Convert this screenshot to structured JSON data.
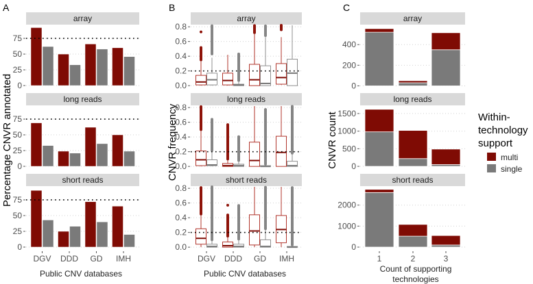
{
  "panel_labels": [
    "A",
    "B",
    "C"
  ],
  "colors": {
    "multi": "#7f0b04",
    "single": "#7a7a7a",
    "multi_box": "#b0332a",
    "single_box": "#8f8f8f",
    "strip": "#d9d9d9"
  },
  "legend": {
    "title_lines": [
      "Within-",
      "technology",
      "support"
    ],
    "items": [
      "multi",
      "single"
    ]
  },
  "chart_data": [
    {
      "type": "bar",
      "panel": "A",
      "facets": [
        "array",
        "long reads",
        "short reads"
      ],
      "categories": [
        "DGV",
        "DDD",
        "GD",
        "IMH"
      ],
      "xlabel": "Public CNV databases",
      "ylabel": "Percentage CNVR annotated",
      "yticks": [
        0,
        25,
        50,
        75
      ],
      "ylim": [
        -5.4,
        95.7
      ],
      "reference_line": 75,
      "grid": true,
      "series": [
        {
          "name": "multi",
          "values": [
            [
              92,
              50,
              66,
              60
            ],
            [
              69,
              24,
              62,
              50
            ],
            [
              90,
              25,
              72,
              65
            ]
          ]
        },
        {
          "name": "single",
          "values": [
            [
              62,
              33,
              58,
              46
            ],
            [
              33,
              21,
              36,
              24
            ],
            [
              43,
              33,
              40,
              20
            ]
          ]
        }
      ]
    },
    {
      "type": "box",
      "panel": "B",
      "facets": [
        "array",
        "long reads",
        "short reads"
      ],
      "categories": [
        "DGV",
        "DDD",
        "GD",
        "IMH"
      ],
      "xlabel": "Public CNV databases",
      "ylabel": "CNVR frequency",
      "yticks": [
        0,
        0.2,
        0.4,
        0.6,
        0.8
      ],
      "ytick_labels": [
        "0.0",
        "0.2",
        "0.4",
        "0.6",
        "0.8"
      ],
      "ylim": [
        -0.045,
        0.82
      ],
      "reference_line": 0.2,
      "grid": true,
      "stat_order": [
        "whisker_low",
        "q1",
        "median",
        "q3",
        "whisker_high"
      ],
      "series": [
        {
          "name": "multi",
          "stats": [
            [
              [
                0.0,
                0.01,
                0.05,
                0.14,
                0.33
              ],
              [
                0.0,
                0.01,
                0.07,
                0.17,
                0.42
              ],
              [
                0.0,
                0.0,
                0.08,
                0.29,
                0.7
              ],
              [
                0.01,
                0.02,
                0.11,
                0.3,
                0.66
              ]
            ],
            [
              [
                0.0,
                0.01,
                0.09,
                0.21,
                0.5
              ],
              [
                0.0,
                0.0,
                0.01,
                0.04,
                0.09
              ],
              [
                0.0,
                0.0,
                0.08,
                0.33,
                0.83
              ],
              [
                0.0,
                0.0,
                0.19,
                0.41,
                0.83
              ]
            ],
            [
              [
                0.0,
                0.04,
                0.12,
                0.25,
                0.45
              ],
              [
                0.0,
                0.0,
                0.02,
                0.07,
                0.15
              ],
              [
                0.0,
                0.03,
                0.22,
                0.44,
                0.83
              ],
              [
                0.0,
                0.06,
                0.24,
                0.43,
                0.83
              ]
            ]
          ],
          "outlier_ranges": [
            [
              [
                0.35,
                0.52,
                0.73
              ],
              [],
              [
                0.72,
                0.83
              ],
              [
                0.76,
                0.83
              ]
            ],
            [
              [
                0.5,
                0.83
              ],
              [
                0.1,
                0.57
              ],
              [
                0.83,
                0.83
              ],
              []
            ],
            [
              [
                0.45,
                0.83
              ],
              [
                0.15,
                0.44,
                0.57
              ],
              [],
              []
            ]
          ]
        },
        {
          "name": "single",
          "stats": [
            [
              [
                0.0,
                0.01,
                0.08,
                0.17,
                0.38
              ],
              [
                0.0,
                0.0,
                0.01,
                0.02,
                0.05
              ],
              [
                0.0,
                0.0,
                0.03,
                0.27,
                0.66
              ],
              [
                0.0,
                0.0,
                0.17,
                0.36,
                0.83
              ]
            ],
            [
              [
                0.0,
                0.01,
                0.02,
                0.09,
                0.2
              ],
              [
                0.0,
                0.0,
                0.01,
                0.03,
                0.07
              ],
              [
                0.0,
                0.0,
                0.0,
                0.01,
                0.02
              ],
              [
                0.0,
                0.0,
                0.01,
                0.07,
                0.17
              ]
            ],
            [
              [
                0.0,
                0.0,
                0.01,
                0.04,
                0.1
              ],
              [
                0.0,
                0.0,
                0.01,
                0.04,
                0.1
              ],
              [
                0.0,
                0.0,
                0.01,
                0.1,
                0.25
              ],
              [
                0.0,
                0.0,
                0.0,
                0.01,
                0.02
              ]
            ]
          ],
          "outlier_ranges": [
            [
              [
                0.43,
                0.83
              ],
              [
                0.07,
                0.44
              ],
              [
                0.68,
                0.83
              ],
              []
            ],
            [
              [
                0.22,
                0.64
              ],
              [
                0.08,
                0.41
              ],
              [
                0.03,
                0.78
              ],
              [
                0.18,
                0.83
              ]
            ],
            [
              [
                0.1,
                0.83
              ],
              [
                0.11,
                0.57
              ],
              [
                0.25,
                0.83
              ],
              [
                0.03,
                0.83
              ]
            ]
          ]
        }
      ]
    },
    {
      "type": "bar",
      "stacked": true,
      "panel": "C",
      "facets": [
        "array",
        "long reads",
        "short reads"
      ],
      "categories": [
        "1",
        "2",
        "3"
      ],
      "xlabel_lines": [
        "Count of supporting",
        "technologies"
      ],
      "ylabel": "CNVR count",
      "facet_yticks": [
        [
          0,
          200,
          400
        ],
        [
          0,
          500,
          1000,
          1500
        ],
        [
          0,
          1000,
          2000
        ]
      ],
      "facet_ylim": [
        [
          -30,
          587
        ],
        [
          -96,
          1712
        ],
        [
          -161,
          2871
        ]
      ],
      "grid": true,
      "series": [
        {
          "name": "single",
          "values": [
            [
              520,
              30,
              350
            ],
            [
              980,
              220,
              50
            ],
            [
              2600,
              520,
              100
            ]
          ]
        },
        {
          "name": "multi",
          "values": [
            [
              35,
              20,
              165
            ],
            [
              640,
              800,
              440
            ],
            [
              150,
              560,
              450
            ]
          ]
        }
      ]
    }
  ]
}
